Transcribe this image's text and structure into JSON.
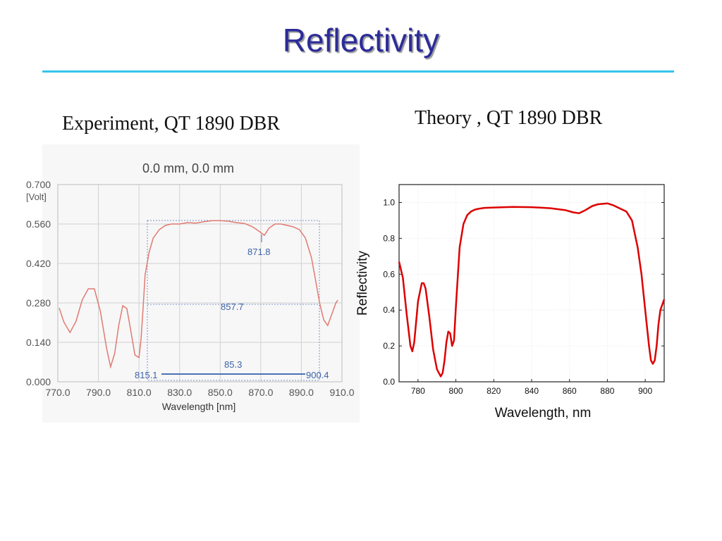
{
  "slide": {
    "title": "Reflectivity",
    "caption_experiment": "Experiment, QT 1890 DBR",
    "caption_theory": "Theory , QT 1890 DBR"
  },
  "colors": {
    "title": "#2b2b9a",
    "rule": "#35c5ea",
    "experiment_curve": "#e07a72",
    "marker_blue": "#4a72b8",
    "theory_curve": "#dd0000"
  },
  "chart_data": [
    {
      "type": "line",
      "title": "0.0 mm, 0.0 mm",
      "xlabel": "Wavelength [nm]",
      "ylabel": "[Volt]",
      "xlim": [
        770,
        910
      ],
      "ylim": [
        0,
        0.7
      ],
      "x_ticks": [
        "770.0",
        "790.0",
        "810.0",
        "830.0",
        "850.0",
        "870.0",
        "890.0",
        "910.0"
      ],
      "y_ticks": [
        "0.000",
        "0.140",
        "0.280",
        "0.420",
        "0.560",
        "0.700"
      ],
      "grid": true,
      "series": [
        {
          "x": [
            770.7,
            773,
            776,
            779,
            782,
            785,
            788,
            791,
            794,
            796,
            798,
            800,
            802,
            804,
            806,
            808,
            810,
            811,
            812,
            813,
            815,
            817,
            820,
            823,
            826,
            830,
            834,
            838,
            842,
            846,
            850,
            854,
            858,
            862,
            866,
            869,
            871.8,
            874,
            877,
            880,
            883,
            886,
            889,
            892,
            895,
            897,
            899,
            901,
            903,
            905,
            907,
            908
          ],
          "y": [
            0.262,
            0.212,
            0.175,
            0.215,
            0.29,
            0.33,
            0.33,
            0.25,
            0.12,
            0.053,
            0.1,
            0.2,
            0.27,
            0.26,
            0.18,
            0.095,
            0.086,
            0.15,
            0.26,
            0.38,
            0.46,
            0.51,
            0.54,
            0.555,
            0.56,
            0.56,
            0.565,
            0.563,
            0.568,
            0.572,
            0.572,
            0.57,
            0.565,
            0.562,
            0.55,
            0.535,
            0.52,
            0.545,
            0.56,
            0.56,
            0.555,
            0.55,
            0.54,
            0.51,
            0.44,
            0.36,
            0.28,
            0.22,
            0.2,
            0.24,
            0.28,
            0.29
          ]
        }
      ],
      "annotations": [
        {
          "label": "871.8",
          "x": 871.8,
          "y": 0.52
        },
        {
          "label": "857.7",
          "y": 0.285
        },
        {
          "label": "85.3",
          "x1": 815.1,
          "x2": 900.4
        },
        {
          "label": "815.1",
          "x": 815.1
        },
        {
          "label": "900.4",
          "x": 900.4
        }
      ]
    },
    {
      "type": "line",
      "xlabel": "Wavelength, nm",
      "ylabel": "Reflectivity",
      "xlim": [
        770,
        910
      ],
      "ylim": [
        0,
        1.1
      ],
      "x_ticks": [
        "780",
        "800",
        "820",
        "840",
        "860",
        "880",
        "900"
      ],
      "y_ticks": [
        "0.0",
        "0.2",
        "0.4",
        "0.6",
        "0.8",
        "1.0"
      ],
      "grid": true,
      "series": [
        {
          "x": [
            770,
            772,
            774,
            776,
            777,
            778,
            780,
            782,
            783,
            784,
            786,
            788,
            790,
            792,
            793,
            794,
            795,
            796,
            797,
            798,
            799,
            800,
            802,
            804,
            806,
            808,
            810,
            812,
            815,
            820,
            830,
            840,
            850,
            858,
            862,
            865,
            868,
            872,
            875,
            880,
            883,
            886,
            890,
            893,
            896,
            898,
            900,
            902,
            903,
            904,
            905,
            906,
            907,
            908,
            910
          ],
          "y": [
            0.67,
            0.58,
            0.38,
            0.2,
            0.17,
            0.22,
            0.45,
            0.55,
            0.55,
            0.52,
            0.36,
            0.18,
            0.07,
            0.03,
            0.05,
            0.12,
            0.22,
            0.28,
            0.27,
            0.2,
            0.23,
            0.42,
            0.75,
            0.88,
            0.93,
            0.95,
            0.96,
            0.965,
            0.97,
            0.972,
            0.975,
            0.974,
            0.968,
            0.957,
            0.945,
            0.94,
            0.955,
            0.98,
            0.99,
            0.995,
            0.985,
            0.97,
            0.95,
            0.9,
            0.75,
            0.6,
            0.4,
            0.2,
            0.12,
            0.1,
            0.12,
            0.2,
            0.32,
            0.4,
            0.46
          ]
        }
      ]
    }
  ]
}
